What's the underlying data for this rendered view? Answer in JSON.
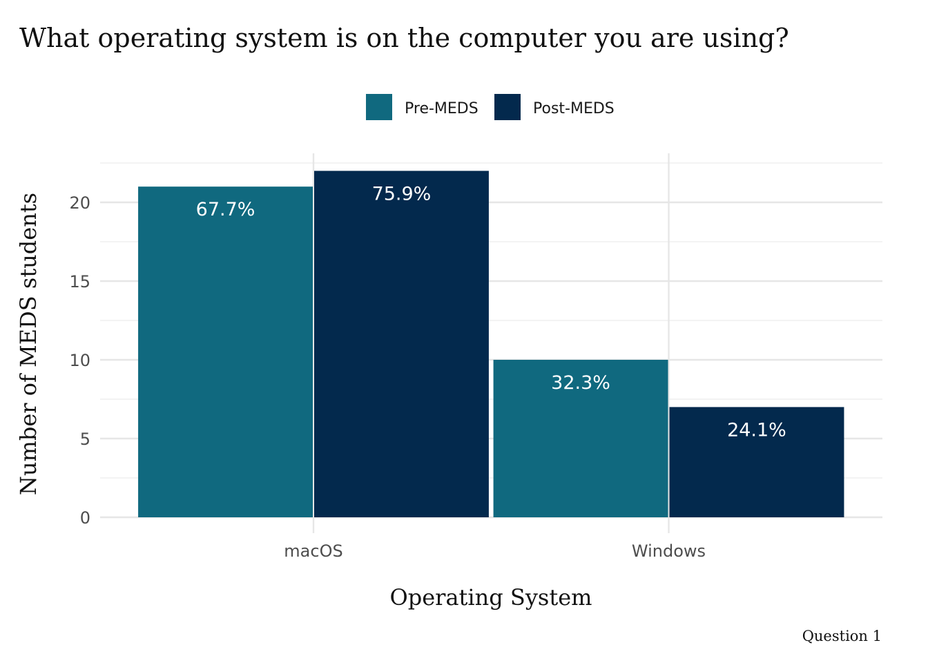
{
  "chart_data": {
    "type": "bar",
    "title": "What operating system is on the computer you are using?",
    "xlabel": "Operating System",
    "ylabel": "Number of MEDS students",
    "caption": "Question 1",
    "categories": [
      "macOS",
      "Windows"
    ],
    "series": [
      {
        "name": "Pre-MEDS",
        "color": "#10697f",
        "values": [
          21,
          10
        ],
        "labels": [
          "67.7%",
          "32.3%"
        ]
      },
      {
        "name": "Post-MEDS",
        "color": "#03294d",
        "values": [
          22,
          7
        ],
        "labels": [
          "75.9%",
          "24.1%"
        ]
      }
    ],
    "ylim": [
      0,
      22.6
    ],
    "yticks": [
      0,
      5,
      10,
      15,
      20
    ],
    "grid": true,
    "legend_position": "top"
  }
}
